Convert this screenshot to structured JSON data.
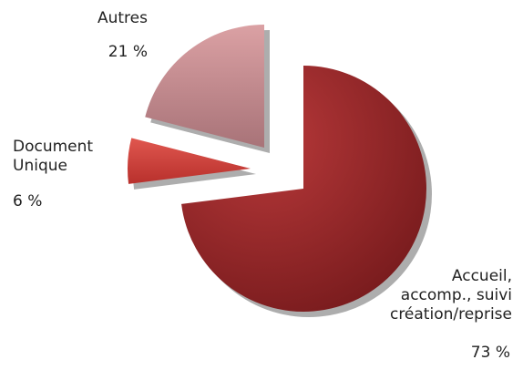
{
  "chart_data": {
    "type": "pie",
    "categories": [
      "Accueil,\naccomp., suivi\ncréation/reprise",
      "Document\nUnique",
      "Autres"
    ],
    "values": [
      73,
      6,
      21
    ],
    "value_labels": [
      "73 %",
      "6 %",
      "21 %"
    ],
    "colors": [
      "#9a2a2b",
      "#d2443e",
      "#c9878b"
    ]
  }
}
